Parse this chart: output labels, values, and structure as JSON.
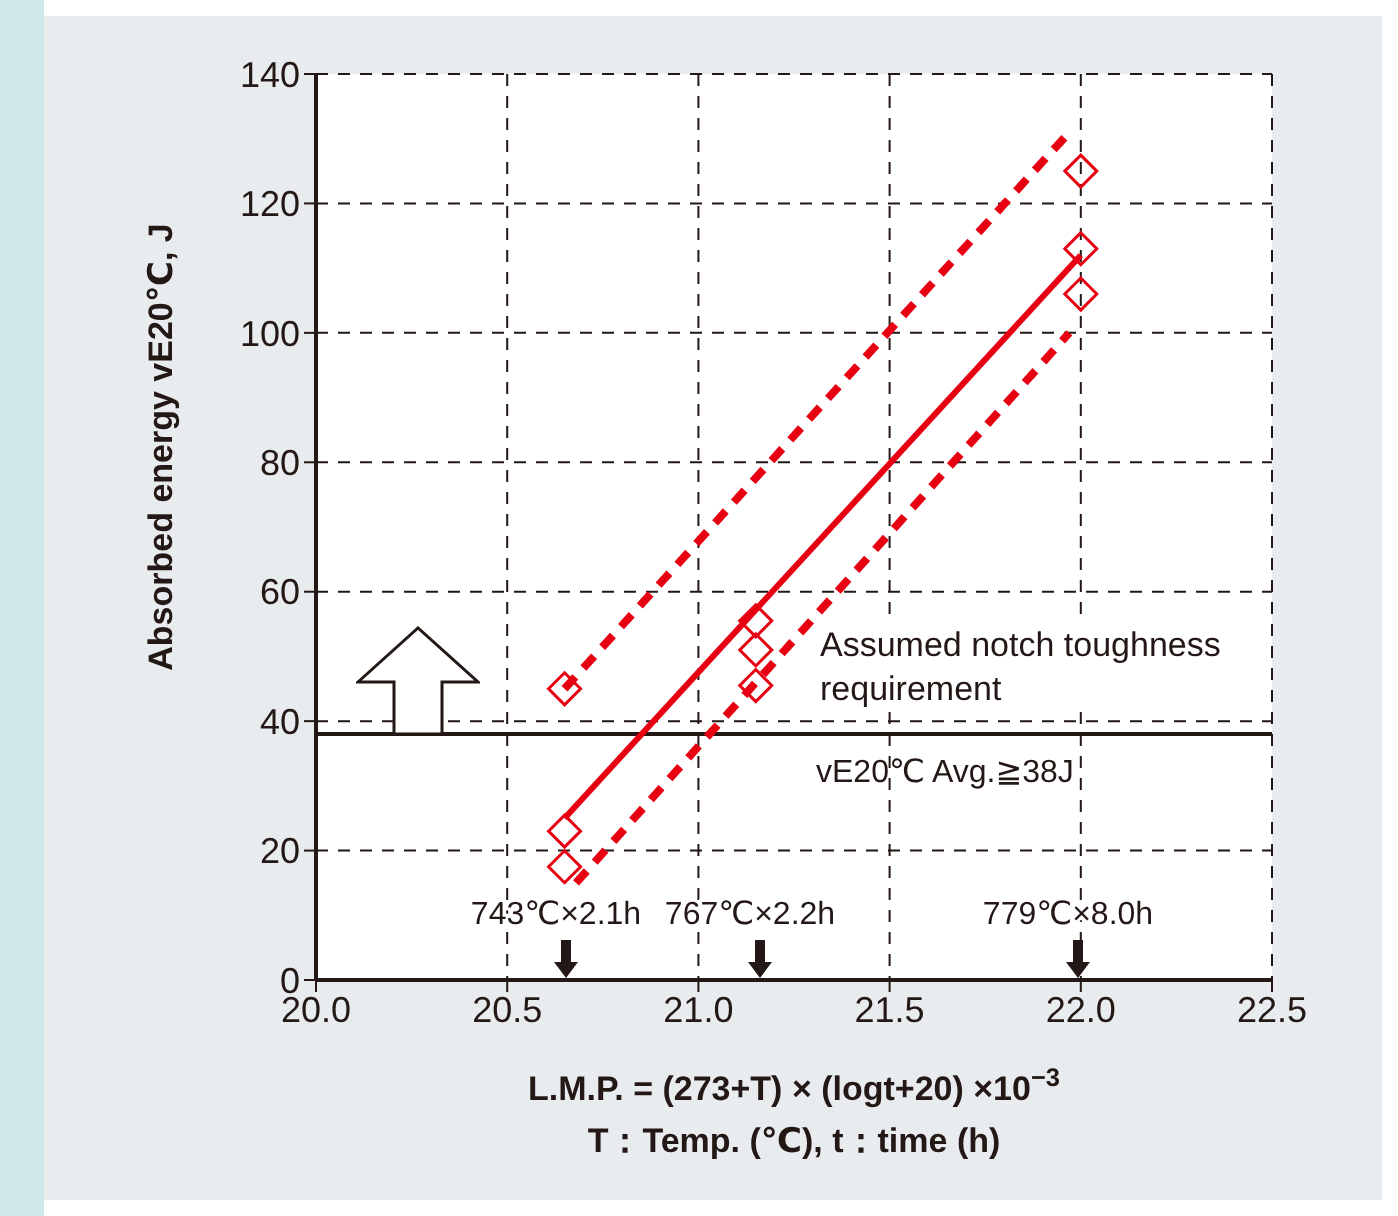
{
  "chart_data": {
    "type": "scatter",
    "xlabel": "L.M.P. = (273+T) × (logt+20) ×10$^{−3}$\nT：Temp. (℃), t：time (h)",
    "ylabel": "Absorbed energy  vE20℃, J",
    "xlim": [
      20.0,
      22.5
    ],
    "xticks": [
      {
        "value": 20,
        "label": "20.0"
      },
      {
        "value": 20.5,
        "label": "20.5"
      },
      {
        "value": 21,
        "label": "21.0"
      },
      {
        "value": 21.5,
        "label": "21.5"
      },
      {
        "value": 22,
        "label": "22.0"
      },
      {
        "value": 22.5,
        "label": "22.5"
      }
    ],
    "ylim": [
      0,
      140
    ],
    "yticks": [
      0,
      20,
      40,
      60,
      80,
      100,
      120,
      140
    ],
    "grid": true,
    "marker": "diamond",
    "series": [
      {
        "color": "#e60012",
        "x": [
          20.65,
          20.65,
          20.65,
          21.15,
          21.15,
          21.15,
          22.0,
          22.0,
          22.0
        ],
        "values": [
          45,
          23,
          17.5,
          55.5,
          51,
          45.5,
          125,
          113,
          106
        ]
      },
      {
        "type": "line",
        "marker": "none",
        "color": "#e60012",
        "line_style": "solid",
        "x": [
          20.65,
          22.0
        ],
        "values": [
          25,
          112
        ]
      },
      {
        "type": "line",
        "marker": "none",
        "color": "#e60012",
        "line_style": "dashed",
        "x": [
          20.65,
          21.97
        ],
        "values": [
          45,
          131
        ]
      },
      {
        "type": "line",
        "marker": "none",
        "color": "#e60012",
        "line_style": "dashed",
        "x": [
          20.68,
          21.97
        ],
        "values": [
          15,
          100
        ]
      }
    ],
    "ref_lines": [
      {
        "axis": "y",
        "value": 38,
        "label": "vE20℃ Avg.≧38J",
        "color": "#231815"
      }
    ],
    "annotations": [
      "Assumed notch toughness requirement",
      "743℃×2.1h",
      "767℃×2.2h",
      "779℃×8.0h"
    ]
  }
}
